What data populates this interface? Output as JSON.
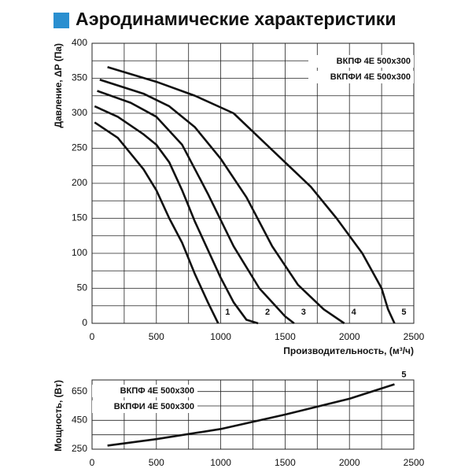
{
  "chart_data": [
    {
      "type": "line",
      "title": "Аэродинамические характеристики",
      "xlabel": "Производительность, (м³/ч)",
      "ylabel": "Давление, ΔP (Па)",
      "legend_text": [
        "ВКПФ 4Е 500х300",
        "ВКПФИ 4Е 500х300"
      ],
      "xlim": [
        0,
        2500
      ],
      "ylim": [
        0,
        400
      ],
      "xticks": [
        0,
        500,
        1000,
        1500,
        2000,
        2500
      ],
      "yticks": [
        0,
        50,
        100,
        150,
        200,
        250,
        300,
        350,
        400
      ],
      "grid": true,
      "color": "#111111",
      "series": [
        {
          "name": "1",
          "x": [
            20,
            200,
            400,
            500,
            600,
            700,
            800,
            900,
            980
          ],
          "values": [
            287,
            265,
            220,
            190,
            150,
            115,
            70,
            30,
            0
          ]
        },
        {
          "name": "2",
          "x": [
            20,
            200,
            400,
            500,
            600,
            700,
            800,
            900,
            1000,
            1100,
            1200,
            1290
          ],
          "values": [
            310,
            295,
            270,
            255,
            230,
            190,
            145,
            105,
            65,
            30,
            5,
            0
          ]
        },
        {
          "name": "3",
          "x": [
            40,
            300,
            500,
            700,
            900,
            1100,
            1300,
            1500,
            1570
          ],
          "values": [
            332,
            315,
            295,
            255,
            185,
            110,
            50,
            10,
            0
          ]
        },
        {
          "name": "4",
          "x": [
            60,
            400,
            600,
            800,
            1000,
            1200,
            1400,
            1600,
            1800,
            1960
          ],
          "values": [
            348,
            328,
            310,
            280,
            235,
            180,
            110,
            55,
            20,
            0
          ]
        },
        {
          "name": "5",
          "x": [
            120,
            500,
            800,
            1100,
            1300,
            1500,
            1700,
            1900,
            2100,
            2250,
            2300,
            2350
          ],
          "values": [
            366,
            345,
            325,
            300,
            265,
            230,
            195,
            150,
            100,
            50,
            20,
            0
          ]
        }
      ]
    },
    {
      "type": "line",
      "ylabel": "Мощность, (Вт)",
      "legend_text": [
        "ВКПФ 4Е 500х300",
        "ВКПФИ 4Е 500х300"
      ],
      "xlim": [
        0,
        2500
      ],
      "ylim": [
        250,
        730
      ],
      "xticks": [
        0,
        500,
        1000,
        1500,
        2000,
        2500
      ],
      "yticks": [
        250,
        450,
        650
      ],
      "grid": true,
      "color": "#111111",
      "series": [
        {
          "name": "5",
          "x": [
            120,
            500,
            1000,
            1500,
            2000,
            2350
          ],
          "values": [
            275,
            320,
            390,
            490,
            600,
            700
          ]
        }
      ]
    }
  ]
}
